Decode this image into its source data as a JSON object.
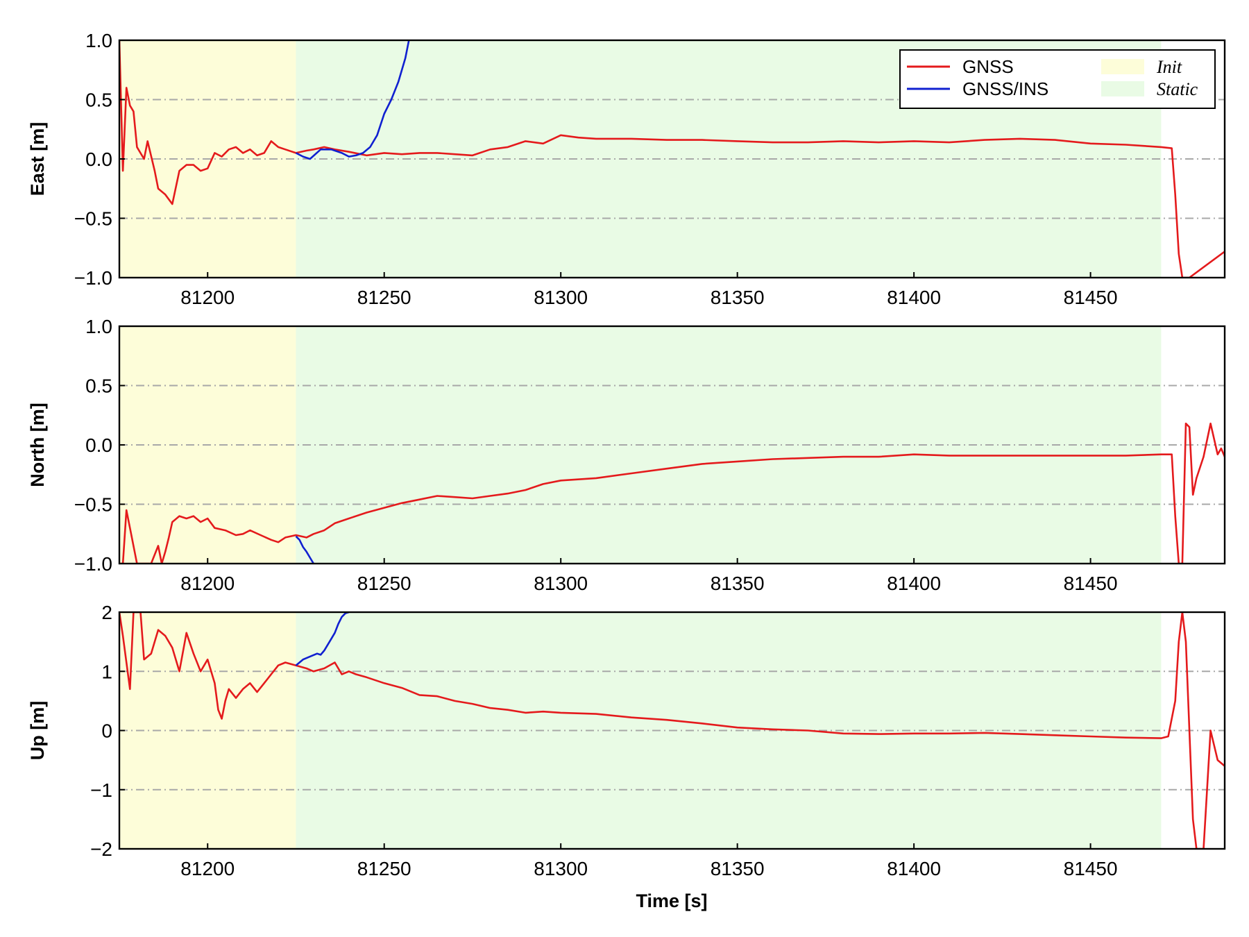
{
  "chart_data": {
    "type": "line",
    "xlabel": "Time [s]",
    "xlim": [
      81175,
      81488
    ],
    "xticks": [
      81200,
      81250,
      81300,
      81350,
      81400,
      81450
    ],
    "xtick_labels": [
      "81200",
      "81250",
      "81300",
      "81350",
      "81400",
      "81450"
    ],
    "grid": "horizontal dash-dot at y ticks",
    "colors": {
      "GNSS": "#e41a1c",
      "GNSS/INS": "#1020d0",
      "Init": "#fdfdd9",
      "Static": "#e9fbe5",
      "grid": "#a8a8a8"
    },
    "legend": {
      "placement": "top-right of first panel",
      "entries": [
        {
          "label": "GNSS",
          "kind": "line",
          "color": "#e41a1c"
        },
        {
          "label": "GNSS/INS",
          "kind": "line",
          "color": "#1020d0"
        },
        {
          "label": "Init",
          "kind": "patch",
          "color": "#fdfdd9"
        },
        {
          "label": "Static",
          "kind": "patch",
          "color": "#e9fbe5"
        }
      ]
    },
    "shaded_regions": [
      {
        "label": "Init",
        "x": [
          81175,
          81225
        ]
      },
      {
        "label": "Static",
        "x": [
          81225,
          81470
        ]
      }
    ],
    "panels": [
      {
        "ylabel": "East [m]",
        "ylim": [
          -1,
          1
        ],
        "yticks": [
          -1,
          -0.5,
          0,
          0.5,
          1
        ],
        "ytick_labels": [
          "−1.0",
          "−0.5",
          "0.0",
          "0.5",
          "1.0"
        ],
        "series": [
          {
            "name": "GNSS",
            "x": [
              81175,
              81176,
              81177,
              81178,
              81179,
              81180,
              81182,
              81183,
              81185,
              81186,
              81188,
              81190,
              81192,
              81194,
              81196,
              81198,
              81200,
              81202,
              81204,
              81206,
              81208,
              81210,
              81212,
              81214,
              81216,
              81218,
              81220,
              81222,
              81225,
              81228,
              81230,
              81233,
              81236,
              81240,
              81245,
              81250,
              81255,
              81260,
              81265,
              81270,
              81275,
              81280,
              81285,
              81290,
              81295,
              81300,
              81305,
              81310,
              81320,
              81330,
              81340,
              81350,
              81360,
              81370,
              81380,
              81390,
              81400,
              81410,
              81420,
              81430,
              81440,
              81450,
              81460,
              81465,
              81470,
              81473,
              81474,
              81475,
              81476,
              81477,
              81478,
              81488
            ],
            "y": [
              1.0,
              -0.1,
              0.6,
              0.45,
              0.4,
              0.1,
              0.0,
              0.15,
              -0.1,
              -0.25,
              -0.3,
              -0.38,
              -0.1,
              -0.05,
              -0.05,
              -0.1,
              -0.08,
              0.05,
              0.02,
              0.08,
              0.1,
              0.05,
              0.08,
              0.03,
              0.05,
              0.15,
              0.1,
              0.08,
              0.05,
              0.07,
              0.08,
              0.1,
              0.08,
              0.06,
              0.03,
              0.05,
              0.04,
              0.05,
              0.05,
              0.04,
              0.03,
              0.08,
              0.1,
              0.15,
              0.13,
              0.2,
              0.18,
              0.17,
              0.17,
              0.16,
              0.16,
              0.15,
              0.14,
              0.14,
              0.15,
              0.14,
              0.15,
              0.14,
              0.16,
              0.17,
              0.16,
              0.13,
              0.12,
              0.11,
              0.1,
              0.09,
              -0.3,
              -0.8,
              -1.0,
              -1.0,
              -1.0,
              -0.78
            ]
          },
          {
            "name": "GNSS/INS",
            "x": [
              81225,
              81227,
              81229,
              81232,
              81235,
              81238,
              81240,
              81242,
              81244,
              81246,
              81248,
              81250,
              81252,
              81254,
              81256,
              81257
            ],
            "y": [
              0.05,
              0.02,
              0.0,
              0.08,
              0.08,
              0.05,
              0.02,
              0.03,
              0.05,
              0.1,
              0.2,
              0.38,
              0.5,
              0.65,
              0.85,
              1.0
            ]
          }
        ]
      },
      {
        "ylabel": "North [m]",
        "ylim": [
          -1,
          1
        ],
        "yticks": [
          -1,
          -0.5,
          0,
          0.5,
          1
        ],
        "ytick_labels": [
          "−1.0",
          "−0.5",
          "0.0",
          "0.5",
          "1.0"
        ],
        "series": [
          {
            "name": "GNSS",
            "x": [
              81175,
              81176,
              81177,
              81178,
              81180,
              81182,
              81184,
              81186,
              81187,
              81188,
              81189,
              81190,
              81192,
              81194,
              81196,
              81198,
              81200,
              81202,
              81205,
              81208,
              81210,
              81212,
              81215,
              81218,
              81220,
              81222,
              81225,
              81228,
              81230,
              81233,
              81236,
              81240,
              81245,
              81250,
              81255,
              81260,
              81265,
              81270,
              81275,
              81280,
              81285,
              81290,
              81295,
              81300,
              81310,
              81320,
              81330,
              81340,
              81350,
              81360,
              81370,
              81380,
              81390,
              81400,
              81410,
              81420,
              81430,
              81440,
              81450,
              81460,
              81470,
              81473,
              81474,
              81475,
              81476,
              81477,
              81478,
              81479,
              81480,
              81482,
              81484,
              81486,
              81487,
              81488
            ],
            "y": [
              -1.0,
              -1.0,
              -0.55,
              -0.7,
              -1.0,
              -1.0,
              -1.0,
              -0.85,
              -1.0,
              -0.9,
              -0.78,
              -0.65,
              -0.6,
              -0.62,
              -0.6,
              -0.65,
              -0.62,
              -0.7,
              -0.72,
              -0.76,
              -0.75,
              -0.72,
              -0.76,
              -0.8,
              -0.82,
              -0.78,
              -0.76,
              -0.78,
              -0.75,
              -0.72,
              -0.66,
              -0.62,
              -0.57,
              -0.53,
              -0.49,
              -0.46,
              -0.43,
              -0.44,
              -0.45,
              -0.43,
              -0.41,
              -0.38,
              -0.33,
              -0.3,
              -0.28,
              -0.24,
              -0.2,
              -0.16,
              -0.14,
              -0.12,
              -0.11,
              -0.1,
              -0.1,
              -0.08,
              -0.09,
              -0.09,
              -0.09,
              -0.09,
              -0.09,
              -0.09,
              -0.08,
              -0.08,
              -0.6,
              -1.0,
              -1.0,
              0.18,
              0.15,
              -0.42,
              -0.28,
              -0.1,
              0.18,
              -0.08,
              -0.03,
              -0.1
            ]
          },
          {
            "name": "GNSS/INS",
            "x": [
              81225,
              81226,
              81227,
              81228,
              81229,
              81230
            ],
            "y": [
              -0.77,
              -0.8,
              -0.86,
              -0.9,
              -0.95,
              -1.0
            ]
          }
        ]
      },
      {
        "ylabel": "Up [m]",
        "ylim": [
          -2,
          2
        ],
        "yticks": [
          -2,
          -1,
          0,
          1,
          2
        ],
        "ytick_labels": [
          "−2",
          "−1",
          "0",
          "1",
          "2"
        ],
        "series": [
          {
            "name": "GNSS",
            "x": [
              81175,
              81176,
              81178,
              81179,
              81180,
              81181,
              81182,
              81184,
              81185,
              81186,
              81188,
              81190,
              81192,
              81194,
              81196,
              81198,
              81200,
              81202,
              81203,
              81204,
              81205,
              81206,
              81208,
              81210,
              81212,
              81214,
              81216,
              81218,
              81220,
              81222,
              81225,
              81228,
              81230,
              81233,
              81236,
              81238,
              81240,
              81242,
              81245,
              81250,
              81255,
              81260,
              81265,
              81270,
              81275,
              81280,
              81285,
              81290,
              81295,
              81300,
              81310,
              81320,
              81330,
              81340,
              81350,
              81360,
              81370,
              81380,
              81390,
              81400,
              81410,
              81420,
              81430,
              81440,
              81450,
              81460,
              81470,
              81472,
              81474,
              81475,
              81476,
              81477,
              81478,
              81479,
              81480,
              81482,
              81484,
              81486,
              81488
            ],
            "y": [
              2.0,
              1.6,
              0.7,
              2.0,
              2.0,
              2.0,
              1.2,
              1.3,
              1.5,
              1.7,
              1.6,
              1.4,
              1.0,
              1.65,
              1.3,
              1.0,
              1.2,
              0.8,
              0.35,
              0.2,
              0.5,
              0.7,
              0.55,
              0.7,
              0.8,
              0.65,
              0.8,
              0.95,
              1.1,
              1.15,
              1.1,
              1.05,
              1.0,
              1.05,
              1.15,
              0.95,
              1.0,
              0.95,
              0.9,
              0.8,
              0.72,
              0.6,
              0.58,
              0.5,
              0.45,
              0.38,
              0.35,
              0.3,
              0.32,
              0.3,
              0.28,
              0.22,
              0.18,
              0.12,
              0.05,
              0.02,
              0.0,
              -0.05,
              -0.06,
              -0.05,
              -0.05,
              -0.04,
              -0.06,
              -0.08,
              -0.1,
              -0.12,
              -0.13,
              -0.1,
              0.5,
              1.5,
              2.0,
              1.5,
              0.0,
              -1.5,
              -2.0,
              -2.0,
              0.0,
              -0.5,
              -0.6
            ]
          },
          {
            "name": "GNSS/INS",
            "x": [
              81225,
              81227,
              81229,
              81231,
              81232,
              81233,
              81234,
              81235,
              81236,
              81237,
              81238,
              81239,
              81240
            ],
            "y": [
              1.1,
              1.2,
              1.25,
              1.3,
              1.28,
              1.35,
              1.45,
              1.55,
              1.65,
              1.8,
              1.92,
              1.98,
              2.0
            ]
          }
        ]
      }
    ]
  }
}
